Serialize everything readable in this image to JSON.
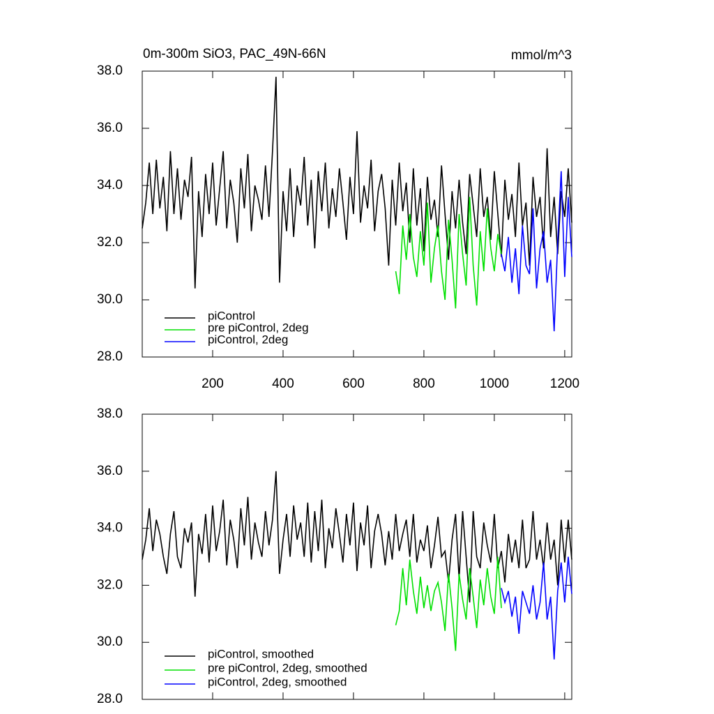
{
  "chart_data": [
    {
      "type": "line",
      "title": "0m-300m SiO3, PAC_49N-66N",
      "units": "mmol/m^3",
      "xlim": [
        0,
        1220
      ],
      "xticks": [
        200,
        400,
        600,
        800,
        1000,
        1200
      ],
      "show_xtick_labels": true,
      "ylim": [
        28,
        38
      ],
      "yticks": [
        {
          "value": 28,
          "label": "28.0"
        },
        {
          "value": 30,
          "label": "30.0"
        },
        {
          "value": 32,
          "label": "32.0"
        },
        {
          "value": 34,
          "label": "34.0"
        },
        {
          "value": 36,
          "label": "36.0"
        },
        {
          "value": 38,
          "label": "38.0"
        }
      ],
      "legend": "lower left",
      "series": [
        {
          "name": "piControl",
          "color": "#000000",
          "x": [
            0,
            10,
            20,
            30,
            40,
            50,
            60,
            70,
            80,
            90,
            100,
            110,
            120,
            130,
            140,
            150,
            160,
            170,
            180,
            190,
            200,
            210,
            220,
            230,
            240,
            250,
            260,
            270,
            280,
            290,
            300,
            310,
            320,
            330,
            340,
            350,
            360,
            370,
            380,
            390,
            400,
            410,
            420,
            430,
            440,
            450,
            460,
            470,
            480,
            490,
            500,
            510,
            520,
            530,
            540,
            550,
            560,
            570,
            580,
            590,
            600,
            610,
            620,
            630,
            640,
            650,
            660,
            670,
            680,
            690,
            700,
            710,
            720,
            730,
            740,
            750,
            760,
            770,
            780,
            790,
            800,
            810,
            820,
            830,
            840,
            850,
            860,
            870,
            880,
            890,
            900,
            910,
            920,
            930,
            940,
            950,
            960,
            970,
            980,
            990,
            1000,
            1010,
            1020,
            1030,
            1040,
            1050,
            1060,
            1070,
            1080,
            1090,
            1100,
            1110,
            1120,
            1130,
            1140,
            1150,
            1160,
            1170,
            1180,
            1190,
            1200,
            1210,
            1220
          ],
          "values": [
            32.5,
            33.4,
            34.8,
            33.0,
            34.9,
            33.2,
            34.3,
            32.4,
            35.2,
            33.0,
            34.6,
            32.8,
            34.2,
            33.6,
            35.0,
            30.4,
            33.8,
            32.2,
            34.4,
            33.0,
            34.8,
            32.6,
            33.9,
            35.2,
            32.5,
            34.2,
            33.4,
            32.0,
            34.6,
            33.2,
            35.1,
            32.4,
            34.0,
            33.5,
            32.8,
            34.7,
            32.9,
            35.2,
            37.8,
            30.6,
            33.8,
            32.4,
            34.6,
            32.2,
            34.0,
            33.3,
            35.0,
            32.6,
            34.2,
            31.8,
            34.5,
            33.1,
            34.8,
            32.5,
            33.9,
            32.9,
            34.6,
            33.4,
            32.1,
            34.3,
            33.0,
            35.9,
            32.7,
            34.0,
            33.2,
            34.9,
            32.4,
            33.8,
            34.4,
            33.2,
            31.2,
            34.2,
            32.6,
            34.8,
            33.1,
            34.1,
            32.0,
            34.6,
            32.6,
            33.9,
            31.7,
            34.3,
            32.8,
            33.5,
            32.2,
            34.7,
            33.0,
            31.4,
            33.8,
            32.5,
            34.2,
            32.7,
            31.6,
            34.4,
            33.3,
            32.2,
            34.6,
            32.9,
            33.6,
            32.1,
            34.5,
            33.0,
            31.5,
            34.2,
            32.8,
            33.7,
            32.2,
            34.8,
            32.6,
            33.4,
            31.2,
            34.3,
            32.9,
            33.6,
            31.8,
            35.3,
            32.2,
            33.6,
            31.6,
            33.8,
            32.9,
            34.6,
            32.7
          ]
        },
        {
          "name": "pre piControl, 2deg",
          "color": "#00e000",
          "x": [
            720,
            730,
            740,
            750,
            760,
            770,
            780,
            790,
            800,
            810,
            820,
            830,
            840,
            850,
            860,
            870,
            880,
            890,
            900,
            910,
            920,
            930,
            940,
            950,
            960,
            970,
            980,
            990,
            1000,
            1010,
            1020
          ],
          "values": [
            31.0,
            30.2,
            32.6,
            31.4,
            33.0,
            31.5,
            30.8,
            32.4,
            31.2,
            33.4,
            30.6,
            31.8,
            32.6,
            31.0,
            30.0,
            32.8,
            31.4,
            29.7,
            33.0,
            31.6,
            30.5,
            33.6,
            31.2,
            29.8,
            32.4,
            31.0,
            33.2,
            31.8,
            31.0,
            32.3,
            31.6
          ]
        },
        {
          "name": "piControl, 2deg",
          "color": "#0000ff",
          "x": [
            1020,
            1030,
            1040,
            1050,
            1060,
            1070,
            1080,
            1090,
            1100,
            1110,
            1120,
            1130,
            1140,
            1150,
            1160,
            1170,
            1180,
            1190,
            1200,
            1210,
            1220
          ],
          "values": [
            31.6,
            31.0,
            32.2,
            30.6,
            31.8,
            30.2,
            32.6,
            31.2,
            30.9,
            33.2,
            30.4,
            31.8,
            32.4,
            30.6,
            31.4,
            28.9,
            32.0,
            34.5,
            30.8,
            33.6,
            31.5
          ]
        }
      ]
    },
    {
      "type": "line",
      "xlim": [
        0,
        1220
      ],
      "xticks": [
        200,
        400,
        600,
        800,
        1000,
        1200
      ],
      "show_xtick_labels": false,
      "ylim": [
        28,
        38
      ],
      "yticks": [
        {
          "value": 28,
          "label": "28.0"
        },
        {
          "value": 30,
          "label": "30.0"
        },
        {
          "value": 32,
          "label": "32.0"
        },
        {
          "value": 34,
          "label": "34.0"
        },
        {
          "value": 36,
          "label": "36.0"
        },
        {
          "value": 38,
          "label": "38.0"
        }
      ],
      "legend": "lower left",
      "series": [
        {
          "name": "piControl, smoothed",
          "color": "#000000",
          "x": [
            0,
            10,
            20,
            30,
            40,
            50,
            60,
            70,
            80,
            90,
            100,
            110,
            120,
            130,
            140,
            150,
            160,
            170,
            180,
            190,
            200,
            210,
            220,
            230,
            240,
            250,
            260,
            270,
            280,
            290,
            300,
            310,
            320,
            330,
            340,
            350,
            360,
            370,
            380,
            390,
            400,
            410,
            420,
            430,
            440,
            450,
            460,
            470,
            480,
            490,
            500,
            510,
            520,
            530,
            540,
            550,
            560,
            570,
            580,
            590,
            600,
            610,
            620,
            630,
            640,
            650,
            660,
            670,
            680,
            690,
            700,
            710,
            720,
            730,
            740,
            750,
            760,
            770,
            780,
            790,
            800,
            810,
            820,
            830,
            840,
            850,
            860,
            870,
            880,
            890,
            900,
            910,
            920,
            930,
            940,
            950,
            960,
            970,
            980,
            990,
            1000,
            1010,
            1020,
            1030,
            1040,
            1050,
            1060,
            1070,
            1080,
            1090,
            1100,
            1110,
            1120,
            1130,
            1140,
            1150,
            1160,
            1170,
            1180,
            1190,
            1200,
            1210,
            1220
          ],
          "values": [
            32.9,
            33.6,
            34.7,
            33.2,
            34.3,
            33.8,
            33.0,
            32.4,
            33.8,
            34.6,
            33.0,
            32.6,
            34.0,
            33.5,
            34.2,
            31.6,
            33.8,
            33.1,
            34.5,
            32.8,
            34.8,
            33.2,
            33.9,
            35.0,
            32.7,
            34.3,
            33.6,
            32.6,
            34.7,
            33.4,
            35.1,
            32.9,
            34.2,
            33.5,
            33.0,
            34.6,
            33.4,
            34.3,
            36.0,
            32.4,
            33.6,
            34.5,
            33.0,
            34.8,
            33.6,
            34.2,
            33.0,
            34.9,
            32.8,
            34.6,
            33.2,
            35.0,
            32.6,
            34.0,
            33.3,
            34.7,
            33.8,
            32.8,
            34.5,
            33.4,
            34.9,
            32.5,
            34.2,
            33.4,
            34.8,
            32.6,
            33.9,
            34.5,
            33.8,
            32.7,
            33.9,
            32.9,
            34.5,
            33.2,
            33.8,
            34.3,
            33.0,
            34.5,
            32.8,
            33.6,
            33.2,
            34.1,
            32.6,
            33.4,
            34.4,
            33.0,
            33.2,
            32.1,
            33.6,
            34.5,
            32.2,
            34.6,
            33.0,
            31.4,
            34.6,
            33.0,
            32.6,
            34.2,
            33.4,
            32.8,
            34.5,
            32.6,
            33.2,
            32.1,
            33.8,
            32.8,
            33.6,
            32.6,
            34.3,
            32.6,
            32.9,
            34.6,
            32.9,
            33.6,
            32.6,
            34.2,
            32.9,
            33.6,
            32.0,
            34.3,
            32.8,
            34.3,
            32.9
          ]
        },
        {
          "name": "pre piControl, 2deg, smoothed",
          "color": "#00e000",
          "x": [
            720,
            730,
            740,
            750,
            760,
            770,
            780,
            790,
            800,
            810,
            820,
            830,
            840,
            850,
            860,
            870,
            880,
            890,
            900,
            910,
            920,
            930,
            940,
            950,
            960,
            970,
            980,
            990,
            1000,
            1010,
            1020
          ],
          "values": [
            30.6,
            31.1,
            32.6,
            31.3,
            32.9,
            31.8,
            31.0,
            32.3,
            31.2,
            32.0,
            31.1,
            31.8,
            32.1,
            31.4,
            30.4,
            32.4,
            31.2,
            29.7,
            32.4,
            31.5,
            30.8,
            32.6,
            31.6,
            30.5,
            32.2,
            31.3,
            32.6,
            31.6,
            31.0,
            33.0,
            31.2
          ]
        },
        {
          "name": "piControl, 2deg, smoothed",
          "color": "#0000ff",
          "x": [
            1020,
            1030,
            1040,
            1050,
            1060,
            1070,
            1080,
            1090,
            1100,
            1110,
            1120,
            1130,
            1140,
            1150,
            1160,
            1170,
            1180,
            1190,
            1200,
            1210,
            1220
          ],
          "values": [
            31.9,
            31.4,
            31.8,
            30.9,
            31.6,
            30.3,
            31.8,
            31.4,
            31.0,
            32.0,
            30.8,
            31.4,
            32.8,
            30.8,
            31.6,
            29.4,
            31.8,
            32.8,
            31.4,
            33.0,
            31.7
          ]
        }
      ]
    }
  ]
}
